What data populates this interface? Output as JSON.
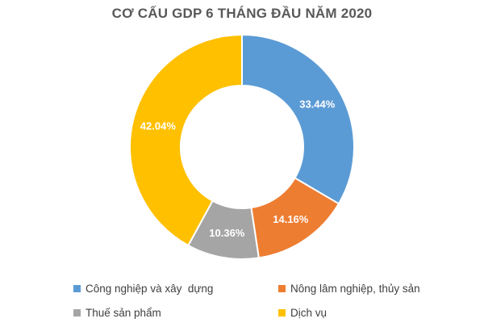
{
  "chart_data": {
    "type": "pie",
    "subtype": "donut",
    "title": "CƠ CẤU GDP 6 THÁNG ĐẦU NĂM 2020",
    "categories": [
      "Công nghiệp và xây  dựng",
      "Nông lâm nghiệp, thủy sản",
      "Thuế sản phẩm",
      "Dịch vụ"
    ],
    "values": [
      33.44,
      14.16,
      10.36,
      42.04
    ],
    "data_labels": [
      "33.44%",
      "14.16%",
      "10.36%",
      "42.04%"
    ],
    "colors": [
      "#5B9BD5",
      "#ED7D31",
      "#A5A5A5",
      "#FFC000"
    ],
    "legend_position": "bottom"
  }
}
